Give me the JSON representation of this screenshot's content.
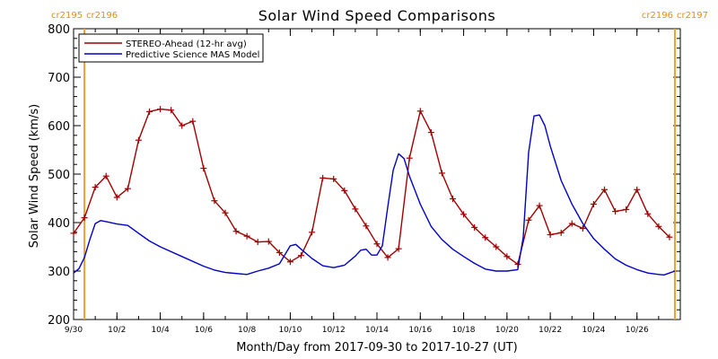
{
  "chart_data": {
    "type": "line",
    "title": "Solar Wind Speed Comparisons",
    "xlabel": "Month/Day from 2017-09-30 to 2017-10-27 (UT)",
    "ylabel": "Solar Wind Speed (km/s)",
    "ylim": [
      200,
      800
    ],
    "xlim": [
      "2017-09-30",
      "2017-10-27"
    ],
    "yticks": [
      200,
      300,
      400,
      500,
      600,
      700,
      800
    ],
    "xticks": [
      {
        "date": "2017-09-30",
        "label": "9/30"
      },
      {
        "date": "2017-10-02",
        "label": "10/2"
      },
      {
        "date": "2017-10-04",
        "label": "10/4"
      },
      {
        "date": "2017-10-06",
        "label": "10/6"
      },
      {
        "date": "2017-10-08",
        "label": "10/8"
      },
      {
        "date": "2017-10-10",
        "label": "10/10"
      },
      {
        "date": "2017-10-12",
        "label": "10/12"
      },
      {
        "date": "2017-10-14",
        "label": "10/14"
      },
      {
        "date": "2017-10-16",
        "label": "10/16"
      },
      {
        "date": "2017-10-18",
        "label": "10/18"
      },
      {
        "date": "2017-10-20",
        "label": "10/20"
      },
      {
        "date": "2017-10-22",
        "label": "10/22"
      },
      {
        "date": "2017-10-24",
        "label": "10/24"
      },
      {
        "date": "2017-10-26",
        "label": "10/26"
      }
    ],
    "carrington_markers": [
      {
        "date": "2017-09-30 12:00",
        "left_label": "cr2195",
        "right_label": "cr2196",
        "color": "#f0a030"
      },
      {
        "date": "2017-10-27 18:00",
        "left_label": "cr2196",
        "right_label": "cr2197",
        "color": "#f0a030"
      }
    ],
    "legend": {
      "placement": "top-left"
    },
    "series": [
      {
        "name": "STEREO-Ahead (12-hr avg)",
        "color": "#a00000",
        "markers": true,
        "points": [
          [
            "2017-09-30 00:00",
            378
          ],
          [
            "2017-09-30 12:00",
            410
          ],
          [
            "2017-10-01 00:00",
            473
          ],
          [
            "2017-10-01 12:00",
            496
          ],
          [
            "2017-10-02 00:00",
            452
          ],
          [
            "2017-10-02 12:00",
            470
          ],
          [
            "2017-10-03 00:00",
            570
          ],
          [
            "2017-10-03 12:00",
            629
          ],
          [
            "2017-10-04 00:00",
            634
          ],
          [
            "2017-10-04 12:00",
            632
          ],
          [
            "2017-10-05 00:00",
            600
          ],
          [
            "2017-10-05 12:00",
            609
          ],
          [
            "2017-10-06 00:00",
            512
          ],
          [
            "2017-10-06 12:00",
            445
          ],
          [
            "2017-10-07 00:00",
            420
          ],
          [
            "2017-10-07 12:00",
            382
          ],
          [
            "2017-10-08 00:00",
            372
          ],
          [
            "2017-10-08 12:00",
            360
          ],
          [
            "2017-10-09 00:00",
            361
          ],
          [
            "2017-10-09 12:00",
            338
          ],
          [
            "2017-10-10 00:00",
            319
          ],
          [
            "2017-10-10 12:00",
            332
          ],
          [
            "2017-10-11 00:00",
            380
          ],
          [
            "2017-10-11 12:00",
            492
          ],
          [
            "2017-10-12 00:00",
            490
          ],
          [
            "2017-10-12 12:00",
            466
          ],
          [
            "2017-10-13 00:00",
            428
          ],
          [
            "2017-10-13 12:00",
            393
          ],
          [
            "2017-10-14 00:00",
            356
          ],
          [
            "2017-10-14 12:00",
            328
          ],
          [
            "2017-10-15 00:00",
            346
          ],
          [
            "2017-10-15 12:00",
            533
          ],
          [
            "2017-10-16 00:00",
            630
          ],
          [
            "2017-10-16 12:00",
            586
          ],
          [
            "2017-10-17 00:00",
            502
          ],
          [
            "2017-10-17 12:00",
            449
          ],
          [
            "2017-10-18 00:00",
            417
          ],
          [
            "2017-10-18 12:00",
            390
          ],
          [
            "2017-10-19 00:00",
            369
          ],
          [
            "2017-10-19 12:00",
            350
          ],
          [
            "2017-10-20 00:00",
            330
          ],
          [
            "2017-10-20 12:00",
            314
          ],
          [
            "2017-10-21 00:00",
            405
          ],
          [
            "2017-10-21 12:00",
            435
          ],
          [
            "2017-10-22 00:00",
            375
          ],
          [
            "2017-10-22 12:00",
            379
          ],
          [
            "2017-10-23 00:00",
            398
          ],
          [
            "2017-10-23 12:00",
            388
          ],
          [
            "2017-10-24 00:00",
            438
          ],
          [
            "2017-10-24 12:00",
            468
          ],
          [
            "2017-10-25 00:00",
            423
          ],
          [
            "2017-10-25 12:00",
            427
          ],
          [
            "2017-10-26 00:00",
            468
          ],
          [
            "2017-10-26 12:00",
            418
          ],
          [
            "2017-10-27 00:00",
            392
          ],
          [
            "2017-10-27 12:00",
            370
          ]
        ]
      },
      {
        "name": "Predictive Science MAS Model",
        "color": "#0000c8",
        "markers": false,
        "points": [
          [
            "2017-09-30 00:00",
            296
          ],
          [
            "2017-09-30 06:00",
            305
          ],
          [
            "2017-09-30 12:00",
            328
          ],
          [
            "2017-09-30 18:00",
            365
          ],
          [
            "2017-10-01 00:00",
            398
          ],
          [
            "2017-10-01 06:00",
            404
          ],
          [
            "2017-10-01 12:00",
            402
          ],
          [
            "2017-10-02 00:00",
            397
          ],
          [
            "2017-10-02 12:00",
            394
          ],
          [
            "2017-10-03 00:00",
            378
          ],
          [
            "2017-10-03 12:00",
            362
          ],
          [
            "2017-10-04 00:00",
            350
          ],
          [
            "2017-10-05 00:00",
            330
          ],
          [
            "2017-10-06 00:00",
            310
          ],
          [
            "2017-10-06 12:00",
            302
          ],
          [
            "2017-10-07 00:00",
            297
          ],
          [
            "2017-10-08 00:00",
            293
          ],
          [
            "2017-10-08 12:00",
            300
          ],
          [
            "2017-10-09 00:00",
            306
          ],
          [
            "2017-10-09 12:00",
            315
          ],
          [
            "2017-10-10 00:00",
            352
          ],
          [
            "2017-10-10 06:00",
            355
          ],
          [
            "2017-10-10 12:00",
            345
          ],
          [
            "2017-10-11 00:00",
            326
          ],
          [
            "2017-10-11 12:00",
            311
          ],
          [
            "2017-10-12 00:00",
            307
          ],
          [
            "2017-10-12 12:00",
            312
          ],
          [
            "2017-10-13 00:00",
            331
          ],
          [
            "2017-10-13 06:00",
            343
          ],
          [
            "2017-10-13 12:00",
            345
          ],
          [
            "2017-10-13 18:00",
            333
          ],
          [
            "2017-10-14 00:00",
            333
          ],
          [
            "2017-10-14 06:00",
            352
          ],
          [
            "2017-10-14 12:00",
            433
          ],
          [
            "2017-10-14 18:00",
            508
          ],
          [
            "2017-10-15 00:00",
            542
          ],
          [
            "2017-10-15 06:00",
            532
          ],
          [
            "2017-10-15 12:00",
            496
          ],
          [
            "2017-10-16 00:00",
            438
          ],
          [
            "2017-10-16 12:00",
            392
          ],
          [
            "2017-10-17 00:00",
            365
          ],
          [
            "2017-10-17 12:00",
            345
          ],
          [
            "2017-10-18 00:00",
            330
          ],
          [
            "2017-10-18 12:00",
            316
          ],
          [
            "2017-10-19 00:00",
            304
          ],
          [
            "2017-10-19 12:00",
            300
          ],
          [
            "2017-10-20 00:00",
            300
          ],
          [
            "2017-10-20 12:00",
            303
          ],
          [
            "2017-10-20 18:00",
            370
          ],
          [
            "2017-10-21 00:00",
            545
          ],
          [
            "2017-10-21 06:00",
            620
          ],
          [
            "2017-10-21 12:00",
            622
          ],
          [
            "2017-10-21 18:00",
            600
          ],
          [
            "2017-10-22 00:00",
            558
          ],
          [
            "2017-10-22 12:00",
            487
          ],
          [
            "2017-10-23 00:00",
            438
          ],
          [
            "2017-10-23 12:00",
            398
          ],
          [
            "2017-10-24 00:00",
            367
          ],
          [
            "2017-10-24 12:00",
            345
          ],
          [
            "2017-10-25 00:00",
            325
          ],
          [
            "2017-10-25 12:00",
            312
          ],
          [
            "2017-10-26 00:00",
            303
          ],
          [
            "2017-10-26 12:00",
            296
          ],
          [
            "2017-10-27 00:00",
            293
          ],
          [
            "2017-10-27 06:00",
            292
          ],
          [
            "2017-10-27 12:00",
            296
          ],
          [
            "2017-10-27 18:00",
            300
          ]
        ]
      }
    ]
  }
}
